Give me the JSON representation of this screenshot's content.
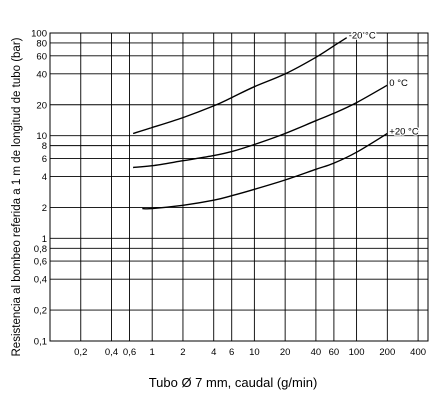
{
  "chart_data": {
    "type": "line",
    "xlabel": "Tubo Ø 7 mm, caudal (g/min)",
    "ylabel": "Resistencia al bombeo referida a 1 m de longitud de tubo (bar)",
    "xscale": "log",
    "yscale": "log",
    "xlim": [
      0.1,
      500
    ],
    "ylim": [
      0.1,
      100
    ],
    "grid": true,
    "x_ticks": [
      {
        "value": 0.2,
        "label": "0,2"
      },
      {
        "value": 0.4,
        "label": "0,4"
      },
      {
        "value": 0.6,
        "label": "0,6"
      },
      {
        "value": 1,
        "label": "1"
      },
      {
        "value": 2,
        "label": "2"
      },
      {
        "value": 4,
        "label": "4"
      },
      {
        "value": 6,
        "label": "6"
      },
      {
        "value": 10,
        "label": "10"
      },
      {
        "value": 20,
        "label": "20"
      },
      {
        "value": 40,
        "label": "40"
      },
      {
        "value": 60,
        "label": "60"
      },
      {
        "value": 100,
        "label": "100"
      },
      {
        "value": 200,
        "label": "200"
      },
      {
        "value": 400,
        "label": "400"
      }
    ],
    "y_ticks": [
      {
        "value": 0.1,
        "label": "0,1"
      },
      {
        "value": 0.2,
        "label": "0,2"
      },
      {
        "value": 0.4,
        "label": "0,4"
      },
      {
        "value": 0.6,
        "label": "0,6"
      },
      {
        "value": 0.8,
        "label": "0,8"
      },
      {
        "value": 1,
        "label": "1"
      },
      {
        "value": 2,
        "label": "2"
      },
      {
        "value": 4,
        "label": "4"
      },
      {
        "value": 6,
        "label": "6"
      },
      {
        "value": 8,
        "label": "8"
      },
      {
        "value": 10,
        "label": "10"
      },
      {
        "value": 20,
        "label": "20"
      },
      {
        "value": 40,
        "label": "40"
      },
      {
        "value": 60,
        "label": "60"
      },
      {
        "value": 80,
        "label": "80"
      },
      {
        "value": 100,
        "label": "100"
      }
    ],
    "series": [
      {
        "name": "-20 °C",
        "x": [
          0.65,
          1,
          2,
          4,
          6,
          10,
          20,
          40,
          60,
          80
        ],
        "y": [
          10.5,
          12,
          15,
          19.5,
          23.5,
          30,
          40,
          58,
          75,
          90
        ]
      },
      {
        "name": "0 °C",
        "x": [
          0.65,
          1,
          2,
          4,
          6,
          10,
          20,
          40,
          60,
          100,
          200
        ],
        "y": [
          4.9,
          5.1,
          5.7,
          6.4,
          7,
          8.2,
          10.5,
          14,
          16.5,
          21,
          31
        ]
      },
      {
        "name": "+20 °C",
        "x": [
          0.8,
          1,
          2,
          4,
          6,
          10,
          20,
          40,
          60,
          100,
          200
        ],
        "y": [
          1.95,
          1.95,
          2.1,
          2.35,
          2.6,
          3,
          3.7,
          4.7,
          5.4,
          6.9,
          10.5
        ]
      }
    ]
  }
}
